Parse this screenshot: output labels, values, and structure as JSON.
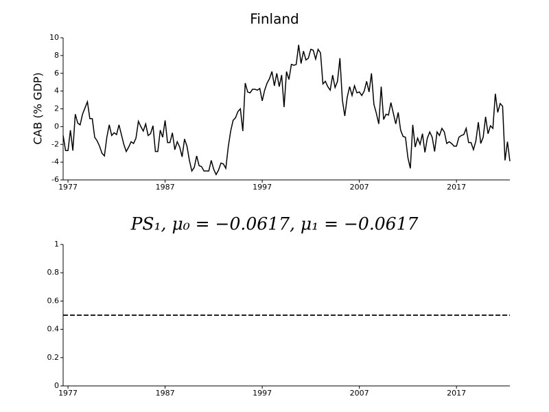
{
  "chart_data": [
    {
      "type": "line",
      "title": "Finland",
      "y_label": "CAB (% GDP)",
      "x": [
        1976.5,
        1976.75,
        1977,
        1977.25,
        1977.5,
        1977.75,
        1978,
        1978.25,
        1978.5,
        1978.75,
        1979,
        1979.25,
        1979.5,
        1979.75,
        1980,
        1980.25,
        1980.5,
        1980.75,
        1981,
        1981.25,
        1981.5,
        1981.75,
        1982,
        1982.25,
        1982.5,
        1982.75,
        1983,
        1983.25,
        1983.5,
        1983.75,
        1984,
        1984.25,
        1984.5,
        1984.75,
        1985,
        1985.25,
        1985.5,
        1985.75,
        1986,
        1986.25,
        1986.5,
        1986.75,
        1987,
        1987.25,
        1987.5,
        1987.75,
        1988,
        1988.25,
        1988.5,
        1988.75,
        1989,
        1989.25,
        1989.5,
        1989.75,
        1990,
        1990.25,
        1990.5,
        1990.75,
        1991,
        1991.25,
        1991.5,
        1991.75,
        1992,
        1992.25,
        1992.5,
        1992.75,
        1993,
        1993.25,
        1993.5,
        1993.75,
        1994,
        1994.25,
        1994.5,
        1994.75,
        1995,
        1995.25,
        1995.5,
        1995.75,
        1996,
        1996.25,
        1996.5,
        1996.75,
        1997,
        1997.25,
        1997.5,
        1997.75,
        1998,
        1998.25,
        1998.5,
        1998.75,
        1999,
        1999.25,
        1999.5,
        1999.75,
        2000,
        2000.25,
        2000.5,
        2000.75,
        2001,
        2001.25,
        2001.5,
        2001.75,
        2002,
        2002.25,
        2002.5,
        2002.75,
        2003,
        2003.25,
        2003.5,
        2003.75,
        2004,
        2004.25,
        2004.5,
        2004.75,
        2005,
        2005.25,
        2005.5,
        2005.75,
        2006,
        2006.25,
        2006.5,
        2006.75,
        2007,
        2007.25,
        2007.5,
        2007.75,
        2008,
        2008.25,
        2008.5,
        2008.75,
        2009,
        2009.25,
        2009.5,
        2009.75,
        2010,
        2010.25,
        2010.5,
        2010.75,
        2011,
        2011.25,
        2011.5,
        2011.75,
        2012,
        2012.25,
        2012.5,
        2012.75,
        2013,
        2013.25,
        2013.5,
        2013.75,
        2014,
        2014.25,
        2014.5,
        2014.75,
        2015,
        2015.25,
        2015.5,
        2015.75,
        2016,
        2016.25,
        2016.5,
        2016.75,
        2017,
        2017.25,
        2017.5,
        2017.75,
        2018,
        2018.25,
        2018.5,
        2018.75,
        2019,
        2019.25,
        2019.5,
        2019.75,
        2020,
        2020.25,
        2020.5,
        2020.75,
        2021,
        2021.25,
        2021.5,
        2021.75,
        2022,
        2022.25,
        2022.5
      ],
      "values": [
        -1,
        -2.7,
        -2.7,
        -0.4,
        -2.7,
        1.4,
        0.4,
        0.2,
        1.4,
        2.1,
        2.8,
        0.9,
        0.9,
        -1.2,
        -1.6,
        -2.2,
        -3,
        -3.3,
        -1.2,
        0.2,
        -1,
        -0.7,
        -0.9,
        0.2,
        -0.9,
        -2,
        -2.8,
        -2.3,
        -1.7,
        -1.9,
        -1.3,
        0.6,
        0,
        -0.5,
        0.3,
        -1,
        -0.8,
        0.1,
        -2.8,
        -2.8,
        -0.4,
        -1.2,
        0.7,
        -1.8,
        -1.8,
        -0.7,
        -2.6,
        -1.7,
        -2.3,
        -3.4,
        -1.4,
        -2.2,
        -3.8,
        -5,
        -4.6,
        -3.3,
        -4.4,
        -4.5,
        -5,
        -5,
        -5,
        -3.8,
        -4.8,
        -5.4,
        -4.9,
        -4.1,
        -4.2,
        -4.7,
        -2.3,
        -0.5,
        0.7,
        1,
        1.7,
        2,
        -0.5,
        4.9,
        3.9,
        3.8,
        4.2,
        4.2,
        4.1,
        4.3,
        2.9,
        4.1,
        4.9,
        5.4,
        6.2,
        4.6,
        6,
        4.5,
        5.8,
        2.2,
        6.2,
        5.3,
        7,
        6.9,
        7,
        9.2,
        7.1,
        8.5,
        7.5,
        7.7,
        8.7,
        8.6,
        7.6,
        8.7,
        8.3,
        4.8,
        5.1,
        4.5,
        4.1,
        5.8,
        4.4,
        5.1,
        7.7,
        3,
        1.2,
        3.3,
        4.5,
        3.5,
        4.6,
        3.8,
        3.9,
        3.5,
        4,
        5.1,
        3.9,
        6,
        2.5,
        1.5,
        0.3,
        4.5,
        0.8,
        1.4,
        1.3,
        2.7,
        1.5,
        0.3,
        1.6,
        -0.4,
        -1.1,
        -1.2,
        -3.5,
        -4.7,
        0.2,
        -2.3,
        -1.3,
        -2,
        -0.8,
        -2.9,
        -1.3,
        -0.6,
        -1.2,
        -2.8,
        -0.6,
        -1,
        -0.2,
        -0.6,
        -1.9,
        -1.7,
        -1.9,
        -2.2,
        -2.2,
        -1.2,
        -1,
        -0.9,
        -0.2,
        -1.8,
        -1.8,
        -2.6,
        -1.6,
        0.5,
        -1.9,
        -1.2,
        1.1,
        -0.8,
        0.1,
        -0.2,
        3.7,
        1.6,
        2.6,
        2.3,
        -3.8,
        -1.7,
        -3.9
      ],
      "color": "#000000",
      "xlim": [
        1976.5,
        2022.5
      ],
      "xticks": [
        1977,
        1987,
        1997,
        2007,
        2017
      ],
      "ylim": [
        -6,
        10
      ],
      "yticks": [
        -6,
        -4,
        -2,
        0,
        2,
        4,
        6,
        8,
        10
      ]
    },
    {
      "type": "reference",
      "title": "PS₁, μ₀ = −0.0617, μ₁ = −0.0617",
      "reference_line": {
        "value": 0.5,
        "color": "#000000",
        "style": "dashed"
      },
      "xlim": [
        1976.5,
        2022.5
      ],
      "xticks": [
        1977,
        1987,
        1997,
        2007,
        2017
      ],
      "ylim": [
        0,
        1
      ],
      "yticks": [
        0,
        0.2,
        0.4,
        0.6,
        0.8,
        1
      ]
    }
  ]
}
